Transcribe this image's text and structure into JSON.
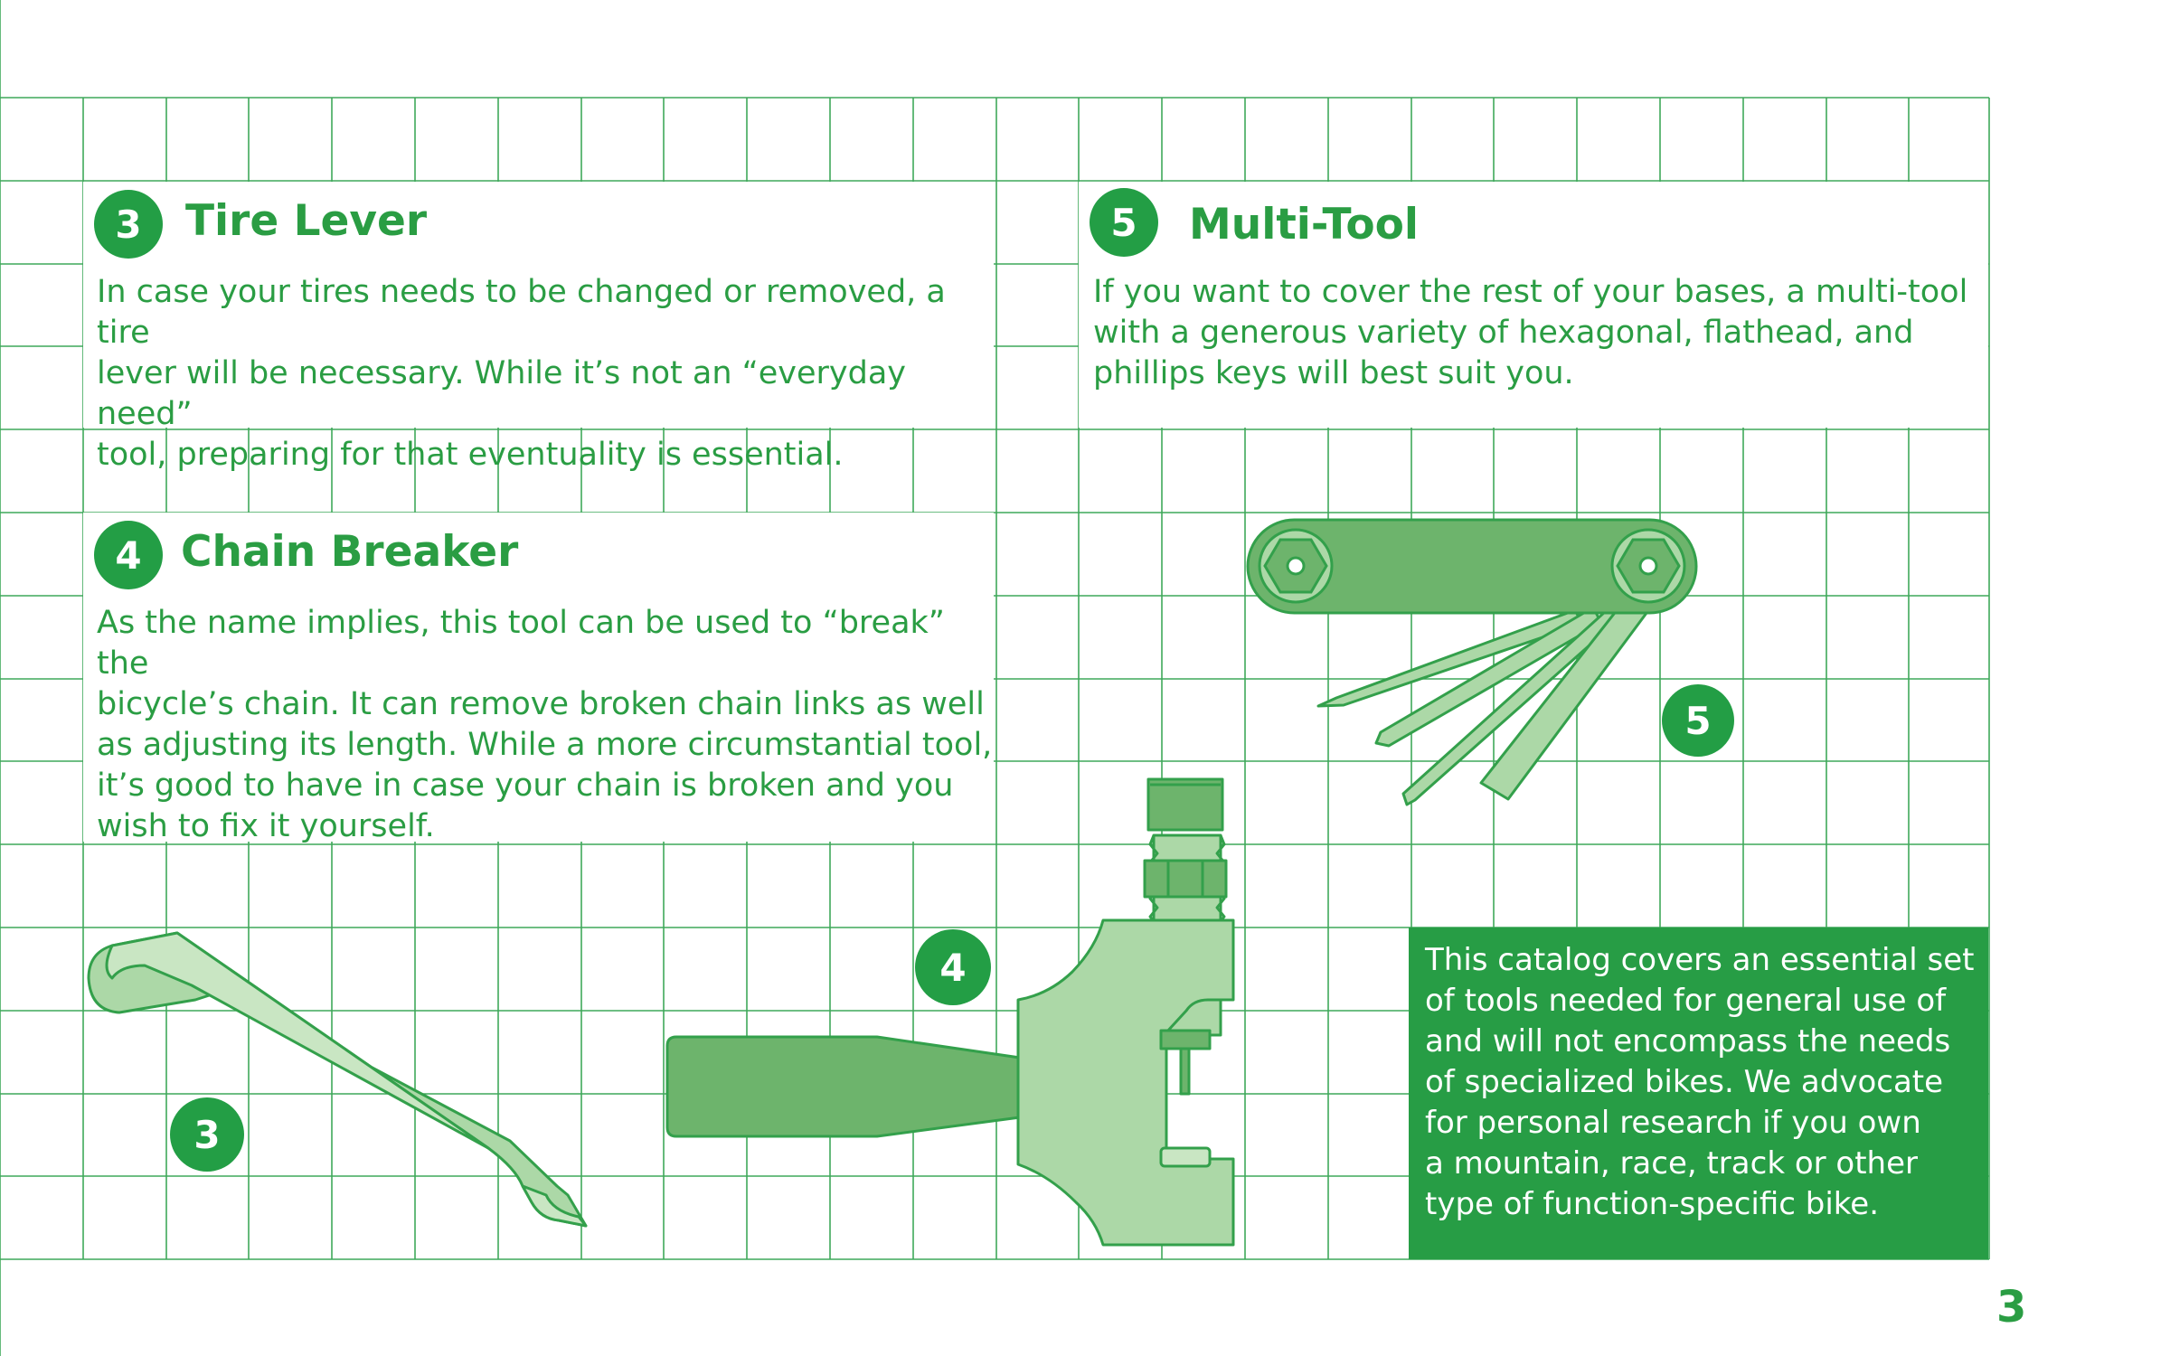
{
  "sections": {
    "tire_lever": {
      "number": "3",
      "title": "Tire Lever",
      "lines": [
        "In case your tires needs to be changed or removed, a tire",
        "lever will be necessary. While it’s not an “everyday need”",
        "tool, preparing for that eventuality is essential."
      ]
    },
    "multi_tool": {
      "number": "5",
      "title": "Multi-Tool",
      "lines": [
        "If you want to cover the rest of your bases, a multi-tool",
        "with a generous variety of hexagonal, flathead, and",
        "phillips keys will best suit you."
      ]
    },
    "chain_breaker": {
      "number": "4",
      "title": "Chain Breaker",
      "lines": [
        "As the name implies, this tool can be used to “break” the",
        "bicycle’s chain. It can remove broken chain links as well",
        "as adjusting its length. While a more circumstantial tool,",
        "it’s good to have in case your chain is broken and you",
        "wish to fix it yourself."
      ]
    }
  },
  "illustration_labels": {
    "tire_lever": "3",
    "chain_breaker": "4",
    "multi_tool": "5"
  },
  "callout": {
    "lines": [
      "This catalog covers an essential set",
      "of tools needed for general use of",
      "and will not encompass the needs",
      "of specialized bikes. We advocate",
      "for personal research if you own",
      "a mountain, race, track or other",
      "type of function-specific bike."
    ]
  },
  "page_number": "3",
  "colors": {
    "grid": "#3fa85a",
    "badge": "#239e45",
    "text": "#2a9d43",
    "callout_bg": "#279d45",
    "tool_light": "#acd8a7",
    "tool_mid": "#6db46c",
    "tool_stroke": "#33a04b"
  },
  "icons": {
    "tire_lever": "tire-lever-illustration",
    "chain_breaker": "chain-breaker-illustration",
    "multi_tool": "multi-tool-illustration"
  }
}
